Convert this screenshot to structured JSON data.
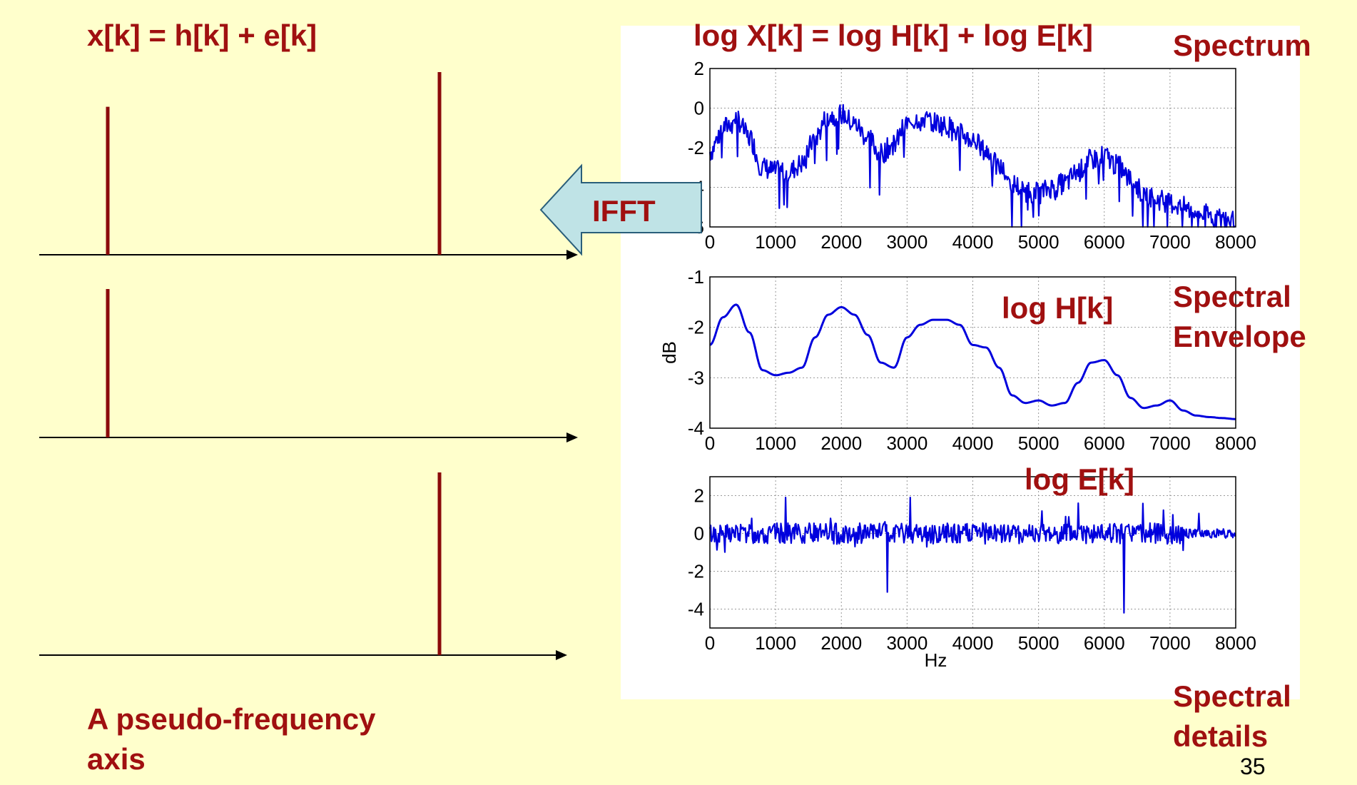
{
  "slide": {
    "left_title": "x[k] = h[k] + e[k]",
    "right_title": "log X[k] = log H[k] + log E[k]",
    "label_spectrum": "Spectrum",
    "label_envelope_1": "Spectral",
    "label_envelope_2": "Envelope",
    "label_details_1": "Spectral",
    "label_details_2": "details",
    "label_log_h": "log H[k]",
    "label_log_e": "log E[k]",
    "axis_caption_1": "A pseudo-frequency",
    "axis_caption_2": "axis",
    "arrow_label": "IFFT",
    "page_number": "35"
  },
  "colors": {
    "background": "#FFFFCC",
    "title_red": "#A01010",
    "stem_red": "#8B0A0A",
    "plot_blue": "#0000DD",
    "arrow_fill": "#BFE3E6"
  },
  "left_stems": [
    {
      "panel": "top",
      "positions": [
        1,
        5
      ],
      "heights": [
        0.81,
        1.0
      ]
    },
    {
      "panel": "middle",
      "positions": [
        1
      ],
      "heights": [
        1.0
      ]
    },
    {
      "panel": "bottom",
      "positions": [
        5
      ],
      "heights": [
        1.0
      ]
    }
  ],
  "chart_data": [
    {
      "type": "line",
      "title": "",
      "xlabel": "",
      "ylabel": "",
      "xlim": [
        0,
        8000
      ],
      "ylim": [
        -6,
        2
      ],
      "xticks": [
        "0",
        "1000",
        "2000",
        "3000",
        "4000",
        "5000",
        "6000",
        "7000",
        "8000"
      ],
      "yticks": [
        "2",
        "0",
        "-2",
        "-4",
        "-6"
      ],
      "grid": true,
      "envelope_x": [
        0,
        200,
        400,
        600,
        800,
        1000,
        1200,
        1400,
        1600,
        1800,
        2000,
        2200,
        2400,
        2600,
        2800,
        3000,
        3200,
        3400,
        3600,
        3800,
        4000,
        4200,
        4400,
        4600,
        4800,
        5000,
        5200,
        5400,
        5600,
        5800,
        6000,
        6200,
        6400,
        6600,
        6800,
        7000,
        7200,
        7400,
        7600,
        7800,
        8000
      ],
      "envelope_y": [
        -2.2,
        -1.0,
        -0.5,
        -1.5,
        -3.0,
        -3.2,
        -3.2,
        -2.8,
        -1.5,
        -0.4,
        -0.3,
        -0.8,
        -1.5,
        -2.3,
        -1.8,
        -0.8,
        -0.5,
        -0.7,
        -0.9,
        -1.3,
        -1.6,
        -2.2,
        -3.0,
        -3.8,
        -4.2,
        -4.3,
        -4.0,
        -3.8,
        -3.2,
        -2.6,
        -2.4,
        -2.9,
        -3.6,
        -4.3,
        -4.6,
        -4.8,
        -5.0,
        -5.3,
        -5.4,
        -5.6,
        -5.7
      ],
      "noise_seed": 7,
      "noise_amplitude": 0.55
    },
    {
      "type": "line",
      "title": "",
      "xlabel": "",
      "ylabel": "dB",
      "xlim": [
        0,
        8000
      ],
      "ylim": [
        -4,
        -1
      ],
      "xticks": [
        "0",
        "1000",
        "2000",
        "3000",
        "4000",
        "5000",
        "6000",
        "7000",
        "8000"
      ],
      "yticks": [
        "-1",
        "-2",
        "-3",
        "-4"
      ],
      "grid": true,
      "x": [
        0,
        200,
        400,
        600,
        800,
        1000,
        1200,
        1400,
        1600,
        1800,
        2000,
        2200,
        2400,
        2600,
        2800,
        3000,
        3200,
        3400,
        3600,
        3800,
        4000,
        4200,
        4400,
        4600,
        4800,
        5000,
        5200,
        5400,
        5600,
        5800,
        6000,
        6200,
        6400,
        6600,
        6800,
        7000,
        7200,
        7400,
        7600,
        7800,
        8000
      ],
      "y": [
        -2.35,
        -1.8,
        -1.55,
        -2.1,
        -2.85,
        -2.95,
        -2.9,
        -2.8,
        -2.2,
        -1.75,
        -1.6,
        -1.75,
        -2.15,
        -2.7,
        -2.8,
        -2.2,
        -1.95,
        -1.85,
        -1.85,
        -1.95,
        -2.35,
        -2.4,
        -2.8,
        -3.35,
        -3.5,
        -3.45,
        -3.55,
        -3.5,
        -3.1,
        -2.7,
        -2.65,
        -2.95,
        -3.4,
        -3.6,
        -3.55,
        -3.45,
        -3.65,
        -3.75,
        -3.78,
        -3.8,
        -3.82
      ]
    },
    {
      "type": "line",
      "title": "",
      "xlabel": "Hz",
      "ylabel": "",
      "xlim": [
        0,
        8000
      ],
      "ylim": [
        -5,
        3
      ],
      "xticks": [
        "0",
        "1000",
        "2000",
        "3000",
        "4000",
        "5000",
        "6000",
        "7000",
        "8000"
      ],
      "yticks": [
        "2",
        "0",
        "-2",
        "-4"
      ],
      "grid": true,
      "noise_seed": 13,
      "noise_amplitude": 0.55,
      "spikes": [
        {
          "x": 1150,
          "y": 1.9
        },
        {
          "x": 2700,
          "y": -3.1
        },
        {
          "x": 3050,
          "y": 1.9
        },
        {
          "x": 6300,
          "y": -4.2
        },
        {
          "x": 5600,
          "y": 1.6
        }
      ]
    }
  ]
}
